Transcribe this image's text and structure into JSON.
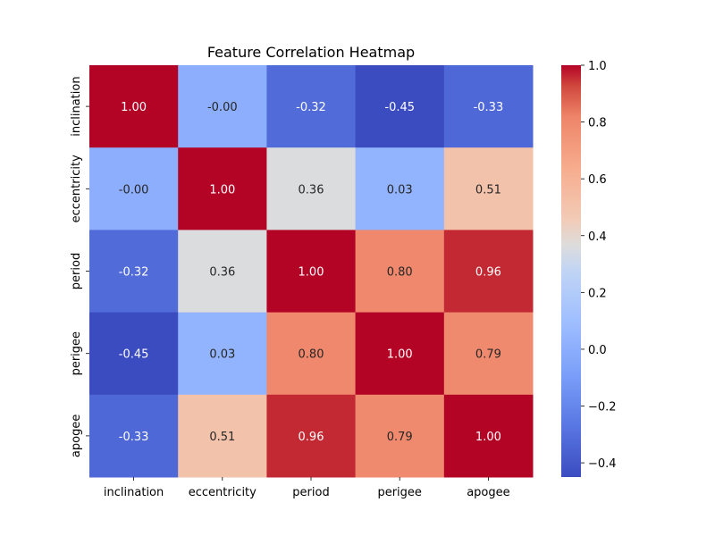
{
  "chart_data": {
    "type": "heatmap",
    "title": "Feature Correlation Heatmap",
    "xlabel": "",
    "ylabel": "",
    "x_categories": [
      "inclination",
      "eccentricity",
      "period",
      "perigee",
      "apogee"
    ],
    "y_categories": [
      "inclination",
      "eccentricity",
      "period",
      "perigee",
      "apogee"
    ],
    "values": [
      [
        1.0,
        -0.0,
        -0.32,
        -0.45,
        -0.33
      ],
      [
        -0.0,
        1.0,
        0.36,
        0.03,
        0.51
      ],
      [
        -0.32,
        0.36,
        1.0,
        0.8,
        0.96
      ],
      [
        -0.45,
        0.03,
        0.8,
        1.0,
        0.79
      ],
      [
        -0.33,
        0.51,
        0.96,
        0.79,
        1.0
      ]
    ],
    "cell_labels": [
      [
        "1.00",
        "-0.00",
        "-0.32",
        "-0.45",
        "-0.33"
      ],
      [
        "-0.00",
        "1.00",
        "0.36",
        "0.03",
        "0.51"
      ],
      [
        "-0.32",
        "0.36",
        "1.00",
        "0.80",
        "0.96"
      ],
      [
        "-0.45",
        "0.03",
        "0.80",
        "1.00",
        "0.79"
      ],
      [
        "-0.33",
        "0.51",
        "0.96",
        "0.79",
        "1.00"
      ]
    ],
    "colormap": "coolwarm",
    "color_range": [
      -0.45,
      1.0
    ],
    "colorbar_ticks": [
      1.0,
      0.8,
      0.6,
      0.4,
      0.2,
      0.0,
      -0.2,
      -0.4
    ],
    "colorbar_tick_labels": [
      "1.0",
      "0.8",
      "0.6",
      "0.4",
      "0.2",
      "0.0",
      "−0.2",
      "−0.4"
    ],
    "legend": "colorbar-right"
  }
}
